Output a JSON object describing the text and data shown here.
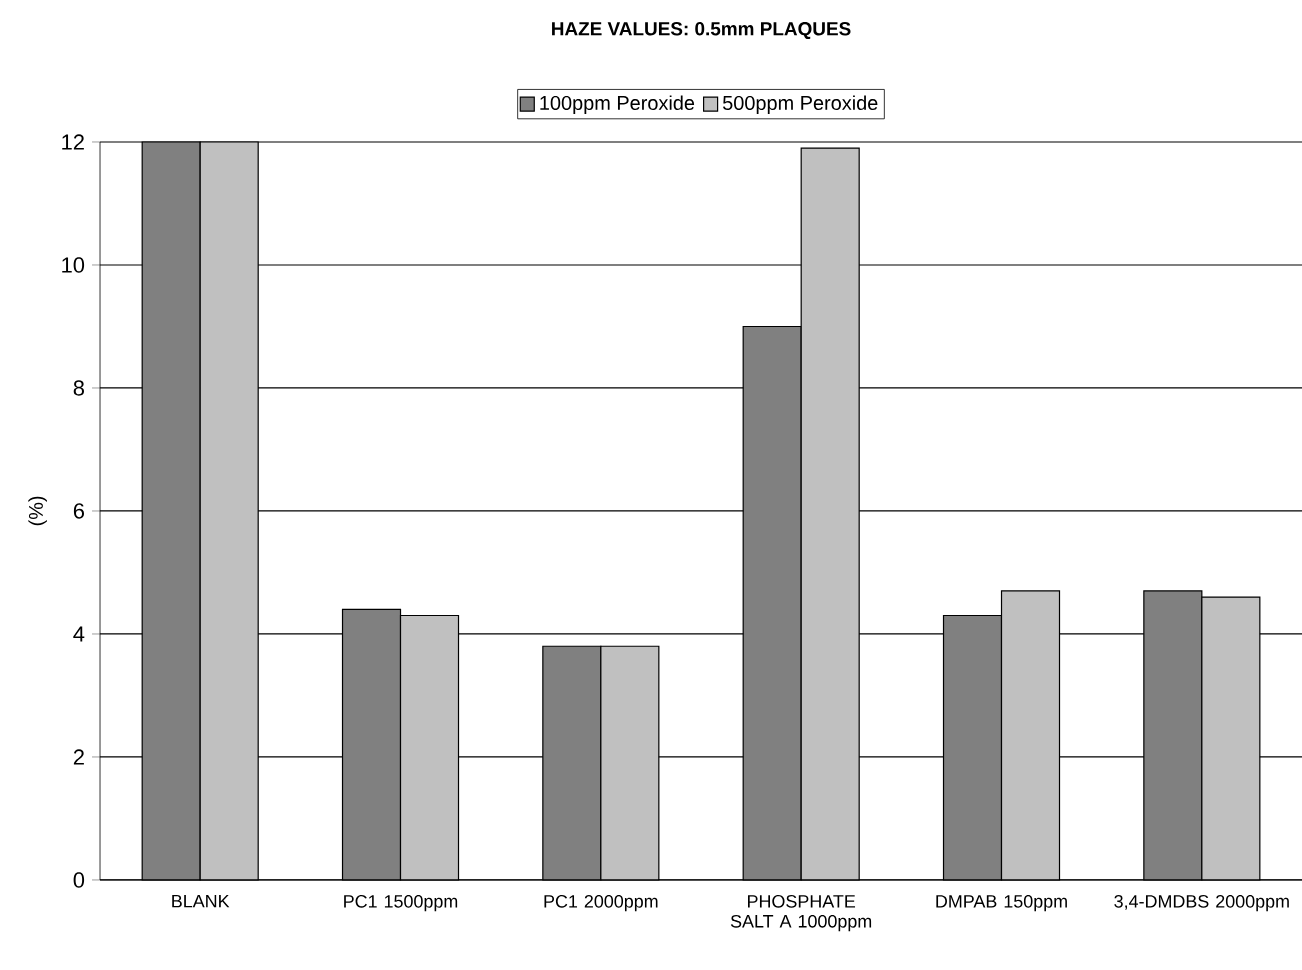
{
  "chart_data": {
    "type": "bar",
    "title": "HAZE VALUES: 0.5mm PLAQUES",
    "ylabel": "(%)",
    "categories": [
      "BLANK",
      "PC1 1500ppm",
      "PC1 2000ppm",
      "PHOSPHATE SALT A 1000ppm",
      "DMPAB 150ppm",
      "3,4-DMDBS 2000ppm"
    ],
    "series": [
      {
        "name": "100ppm Peroxide",
        "color": "#808080",
        "values": [
          12,
          4.4,
          3.8,
          9.0,
          4.3,
          4.7
        ]
      },
      {
        "name": "500ppm Peroxide",
        "color": "#c0c0c0",
        "values": [
          12,
          4.3,
          3.8,
          11.9,
          4.7,
          4.6
        ]
      }
    ],
    "ylim": [
      0,
      12
    ],
    "yticks": [
      0,
      2,
      4,
      6,
      8,
      10,
      12
    ],
    "grid": "y",
    "legend": "top"
  }
}
